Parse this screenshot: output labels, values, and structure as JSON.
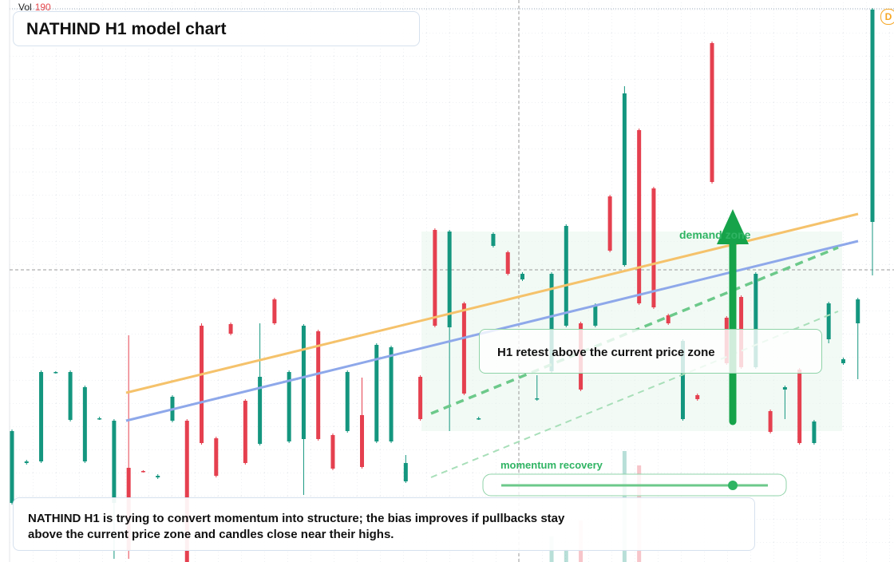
{
  "chart_data": {
    "type": "candlestick",
    "title": "NATHIND H1 model chart",
    "volume_label": "Vol",
    "volume_value": "190",
    "badge": "D",
    "zone_label": "demand zone",
    "callout": "H1 retest above the current price zone",
    "slider_label": "momentum recovery",
    "summary": "NATHIND H1 is trying to convert momentum into structure; the bias improves if pullbacks stay above the current price zone and candles close near their highs.",
    "up_color": "#14967f",
    "down_color": "#e5404f",
    "ylim": [
      0,
      704
    ],
    "open": [
      74,
      124,
      126,
      237,
      178,
      126,
      179,
      74,
      118,
      114,
      106,
      177,
      177,
      296,
      155,
      298,
      202,
      148,
      329,
      151,
      154,
      289,
      159,
      164,
      184,
      151,
      151,
      101,
      232,
      416,
      294,
      324,
      179,
      396,
      388,
      354,
      204,
      239,
      296,
      299,
      296,
      458,
      372,
      541,
      468,
      309,
      179,
      209,
      650,
      306,
      332,
      244,
      189,
      216,
      241,
      149,
      279,
      249,
      299,
      426
    ],
    "high": [
      166,
      128,
      240,
      239,
      240,
      221,
      182,
      179,
      284,
      115,
      110,
      209,
      179,
      299,
      157,
      300,
      204,
      299,
      331,
      240,
      298,
      291,
      161,
      240,
      231,
      274,
      271,
      134,
      234,
      418,
      416,
      326,
      182,
      413,
      390,
      363,
      234,
      363,
      423,
      301,
      324,
      460,
      596,
      543,
      470,
      311,
      279,
      211,
      652,
      308,
      334,
      363,
      191,
      221,
      243,
      178,
      326,
      256,
      331,
      694
    ],
    "low": [
      72,
      122,
      124,
      236,
      176,
      124,
      178,
      4,
      4,
      112,
      104,
      175,
      0,
      147,
      106,
      284,
      122,
      146,
      297,
      149,
      84,
      152,
      115,
      162,
      117,
      149,
      149,
      99,
      177,
      294,
      164,
      209,
      178,
      394,
      359,
      352,
      202,
      237,
      294,
      214,
      294,
      388,
      370,
      322,
      317,
      297,
      177,
      202,
      474,
      247,
      242,
      242,
      161,
      179,
      147,
      147,
      274,
      247,
      229,
      359
    ],
    "close": [
      164,
      126,
      238,
      238,
      238,
      219,
      180,
      177,
      14,
      113,
      108,
      207,
      0,
      149,
      108,
      286,
      124,
      232,
      299,
      238,
      296,
      154,
      117,
      238,
      119,
      272,
      269,
      124,
      179,
      296,
      414,
      211,
      180,
      411,
      361,
      361,
      205,
      361,
      421,
      216,
      322,
      390,
      587,
      324,
      319,
      299,
      277,
      204,
      476,
      249,
      244,
      361,
      163,
      219,
      149,
      176,
      324,
      254,
      329,
      692
    ],
    "volume": [
      null,
      null,
      null,
      null,
      null,
      null,
      null,
      null,
      null,
      null,
      null,
      null,
      null,
      null,
      null,
      null,
      null,
      null,
      null,
      null,
      null,
      null,
      null,
      null,
      null,
      null,
      null,
      null,
      null,
      null,
      null,
      null,
      null,
      null,
      null,
      null,
      null,
      32,
      16,
      52,
      null,
      null,
      139,
      121,
      null,
      null,
      null,
      null,
      null,
      null,
      null,
      null,
      null,
      null,
      null,
      null,
      null,
      null,
      null,
      null
    ]
  }
}
